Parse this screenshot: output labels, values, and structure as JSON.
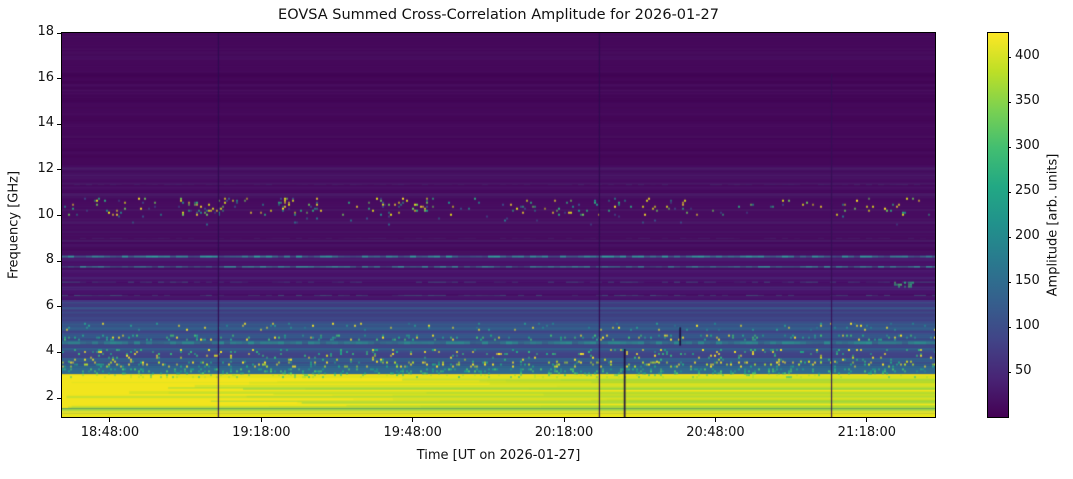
{
  "title": "EOVSA Summed Cross-Correlation Amplitude for 2026-01-27",
  "axes": {
    "x": {
      "label": "Time [UT on 2026-01-27]",
      "ticks": [
        "18:48:00",
        "19:18:00",
        "19:48:00",
        "20:18:00",
        "20:48:00",
        "21:18:00"
      ]
    },
    "y": {
      "label": "Frequency [GHz]",
      "ticks": [
        18,
        16,
        14,
        12,
        10,
        8,
        6,
        4,
        2
      ]
    }
  },
  "colorbar": {
    "label": "Amplitude [arb. units]",
    "ticks": [
      400,
      350,
      300,
      250,
      200,
      150,
      100,
      50
    ],
    "vmin": 0,
    "vmax": 427,
    "colormap": "viridis",
    "viridis_stops": [
      [
        0.0,
        "#440154"
      ],
      [
        0.1,
        "#482475"
      ],
      [
        0.2,
        "#414487"
      ],
      [
        0.3,
        "#355f8d"
      ],
      [
        0.4,
        "#2a788e"
      ],
      [
        0.5,
        "#21918c"
      ],
      [
        0.6,
        "#22a884"
      ],
      [
        0.7,
        "#42be71"
      ],
      [
        0.8,
        "#7ad151"
      ],
      [
        0.9,
        "#bddf26"
      ],
      [
        1.0,
        "#fde725"
      ]
    ]
  },
  "chart_data": {
    "type": "heatmap",
    "title": "EOVSA Summed Cross-Correlation Amplitude for 2026-01-27",
    "xlabel": "Time [UT on 2026-01-27]",
    "ylabel": "Frequency [GHz]",
    "x_ticks": [
      "18:48:00",
      "19:18:00",
      "19:48:00",
      "20:18:00",
      "20:48:00",
      "21:18:00"
    ],
    "y_ticks": [
      18,
      16,
      14,
      12,
      10,
      8,
      6,
      4,
      2
    ],
    "x_range_ut": [
      "18:38:30",
      "21:31:30"
    ],
    "y_range_ghz": [
      1.17,
      18
    ],
    "amplitude_range": [
      0,
      427
    ],
    "colormap": "viridis",
    "features": [
      "Low amplitude (<50, dark purple) background above ~5.5 GHz",
      "Scattered RFI speckles (amplitude ~150-430) in 10.0-10.8 GHz band across full time range, densest clusters 18:40-19:55 UT",
      "Narrow enhanced spectral lines near 8.2 GHz and 7.75 GHz (amplitude ~150-250)",
      "Banded blue/teal structure 3-6 GHz with speckled RFI channels near 5.1, 4.65, 4.0 and 3.5 GHz",
      "Saturated broadband emission (~430, yellow) below ~3 GHz with greener striping toward later times",
      "Green lower-amplitude band near 1.4 GHz",
      "Thin low-amplitude vertical gaps near 19:09:30, 20:25, 20:30, 20:41 and 21:11 UT",
      "Small green enhancement near 7.0 GHz around 21:12 UT"
    ],
    "layers": [
      {
        "type": "fill",
        "f": [
          18,
          12.2
        ],
        "color": "#45085a"
      },
      {
        "type": "rows",
        "f": [
          18,
          12.2
        ],
        "colors": [
          "#4b1163",
          "#400351",
          "#4d1766"
        ],
        "count": 70,
        "alpha": 0.35
      },
      {
        "type": "fill",
        "f": [
          12.2,
          8.3
        ],
        "color": "#470c60"
      },
      {
        "type": "rows",
        "f": [
          12.2,
          8.3
        ],
        "colors": [
          "#4e1669",
          "#420556",
          "#513a78"
        ],
        "count": 60,
        "alpha": 0.3
      },
      {
        "type": "fill",
        "f": [
          8.3,
          6.3
        ],
        "color": "#48126a"
      },
      {
        "type": "rows",
        "f": [
          8.3,
          6.3
        ],
        "colors": [
          "#4f1d72",
          "#440b5e",
          "#4c3a80"
        ],
        "count": 45,
        "alpha": 0.35
      },
      {
        "type": "fill",
        "f": [
          6.3,
          5.55
        ],
        "color": "#453781"
      },
      {
        "type": "rows",
        "f": [
          6.3,
          5.55
        ],
        "colors": [
          "#3b528b",
          "#472d7b",
          "#38618c"
        ],
        "count": 28,
        "alpha": 0.5
      },
      {
        "type": "fill",
        "f": [
          5.55,
          4.2
        ],
        "color": "#3d4f8a"
      },
      {
        "type": "rows",
        "f": [
          5.55,
          4.2
        ],
        "colors": [
          "#355f8d",
          "#414487",
          "#2f6c8e",
          "#46327e"
        ],
        "count": 38,
        "alpha": 0.5
      },
      {
        "type": "fill",
        "f": [
          4.2,
          3.35
        ],
        "color": "#3f4c89"
      },
      {
        "type": "rows",
        "f": [
          4.2,
          3.35
        ],
        "colors": [
          "#365c8d",
          "#433e85",
          "#2d708e"
        ],
        "count": 24,
        "alpha": 0.5
      },
      {
        "type": "fill",
        "f": [
          3.35,
          3.05
        ],
        "color": "#31688e"
      },
      {
        "type": "fill",
        "f": [
          3.05,
          1.55
        ],
        "color": "#f2e51d"
      },
      {
        "type": "rows",
        "f": [
          3.0,
          1.6
        ],
        "colors": [
          "#c8e020",
          "#90d743",
          "#5ec962",
          "#b5de2b"
        ],
        "count": 48,
        "alpha": 0.5,
        "right_bias": true
      },
      {
        "type": "fill",
        "f": [
          1.55,
          1.32
        ],
        "color": "#53c568"
      },
      {
        "type": "rows",
        "f": [
          1.55,
          1.32
        ],
        "colors": [
          "#fde725",
          "#a5db36"
        ],
        "count": 10,
        "alpha": 0.6
      },
      {
        "type": "fill",
        "f": [
          1.32,
          1.17
        ],
        "color": "#e8e41a"
      },
      {
        "type": "hline",
        "f": 11.35,
        "color": "#3e6f8e",
        "alpha": 0.22,
        "thick": 1,
        "dash": true
      },
      {
        "type": "hline",
        "f": 9.0,
        "color": "#45638d",
        "alpha": 0.2,
        "thick": 1,
        "dash": true
      },
      {
        "type": "hline",
        "f": 8.2,
        "color": "#2fb2a0",
        "alpha": 0.9,
        "thick": 2
      },
      {
        "type": "hline",
        "f": 7.75,
        "color": "#35c0aa",
        "alpha": 0.8,
        "thick": 1.5
      },
      {
        "type": "hline",
        "f": 7.08,
        "color": "#379e92",
        "alpha": 0.45,
        "thick": 1,
        "dash": true
      },
      {
        "type": "hline",
        "f": 6.5,
        "color": "#3aa896",
        "alpha": 0.4,
        "thick": 1,
        "dash": true
      },
      {
        "type": "hline",
        "f": 4.42,
        "color": "#2a9d8f",
        "alpha": 0.85,
        "thick": 3
      },
      {
        "type": "speckle",
        "f": [
          10.78,
          10.0
        ],
        "size": 2,
        "density": 0.05,
        "palette": [
          "#fde725",
          "#e2e418",
          "#21918c",
          "#2cb17e",
          "#3b528b",
          "#6ece58"
        ],
        "segments": [
          [
            0,
            0.035,
            1.2
          ],
          [
            0.035,
            0.1,
            2.0
          ],
          [
            0.1,
            0.13,
            0.8
          ],
          [
            0.13,
            0.2,
            2.6
          ],
          [
            0.2,
            0.24,
            1.2
          ],
          [
            0.24,
            0.29,
            2.4
          ],
          [
            0.29,
            0.36,
            1.6
          ],
          [
            0.36,
            0.43,
            2.4
          ],
          [
            0.43,
            0.5,
            0.5
          ],
          [
            0.5,
            0.57,
            1.3
          ],
          [
            0.57,
            0.64,
            1.8
          ],
          [
            0.64,
            0.72,
            1.5
          ],
          [
            0.72,
            0.8,
            0.7
          ],
          [
            0.8,
            0.88,
            0.5
          ],
          [
            0.88,
            0.97,
            1.3
          ],
          [
            0.97,
            1,
            0.4
          ]
        ]
      },
      {
        "type": "speckle",
        "f": [
          10.0,
          9.6
        ],
        "size": 2,
        "density": 0.012,
        "palette": [
          "#3b528b",
          "#2a788e"
        ]
      },
      {
        "type": "speckle",
        "f": [
          7.1,
          6.85
        ],
        "size": 2,
        "density": 0.5,
        "palette": [
          "#2cb17e",
          "#50c46a"
        ],
        "segments": [
          [
            0,
            0.952,
            0
          ],
          [
            0.952,
            0.975,
            1
          ],
          [
            0.975,
            1,
            0
          ]
        ]
      },
      {
        "type": "speckle",
        "f": [
          5.3,
          5.0
        ],
        "size": 2,
        "density": 0.05,
        "palette": [
          "#2a9d8f",
          "#27808e",
          "#fde725"
        ]
      },
      {
        "type": "speckle",
        "f": [
          4.78,
          4.58
        ],
        "size": 2,
        "density": 0.12,
        "palette": [
          "#22a884",
          "#2a9d8f",
          "#fde725",
          "#44bf70"
        ]
      },
      {
        "type": "speckle",
        "f": [
          4.15,
          3.95
        ],
        "size": 2,
        "density": 0.1,
        "palette": [
          "#22a884",
          "#fde725",
          "#35b779"
        ]
      },
      {
        "type": "speckle",
        "f": [
          3.9,
          3.6
        ],
        "size": 2,
        "density": 0.07,
        "palette": [
          "#fde725",
          "#d8e219",
          "#35b779"
        ]
      },
      {
        "type": "speckle",
        "f": [
          3.6,
          3.38
        ],
        "size": 2,
        "density": 0.16,
        "palette": [
          "#fde725",
          "#b5de2b",
          "#22a884"
        ]
      },
      {
        "type": "speckle",
        "f": [
          3.3,
          3.1
        ],
        "size": 2,
        "density": 0.22,
        "palette": [
          "#27a884",
          "#1f9e89",
          "#4ac16d"
        ]
      },
      {
        "type": "speckle",
        "f": [
          3.05,
          2.92
        ],
        "size": 2,
        "density": 0.12,
        "palette": [
          "#b5de2b",
          "#5ec962"
        ]
      },
      {
        "type": "vline",
        "t": "19:09:30",
        "f": [
          18,
          1.17
        ],
        "color": "#2e0b50",
        "w": 1.2
      },
      {
        "type": "vline",
        "t": "20:25:00",
        "f": [
          18,
          1.17
        ],
        "color": "#2e0b50",
        "w": 1.2
      },
      {
        "type": "vline",
        "t": "21:11:00",
        "f": [
          16.2,
          1.17
        ],
        "color": "#340f55",
        "w": 1.2
      },
      {
        "type": "vline",
        "t": "20:30:00",
        "f": [
          4.15,
          1.17
        ],
        "color": "#1d0b3e",
        "w": 1.8
      },
      {
        "type": "vline",
        "t": "20:41:00",
        "f": [
          5.1,
          4.3
        ],
        "color": "#1d0b3e",
        "w": 1.8
      }
    ]
  }
}
